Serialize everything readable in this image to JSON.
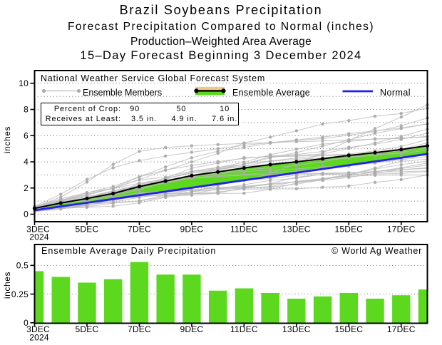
{
  "header": {
    "title": "Brazil Soybeans Precipitation",
    "subtitle1": "Forecast Precipitation Compared to Normal (inches)",
    "subtitle2": "Production–Weighted Area Average",
    "subtitle3": "15–Day Forecast Beginning 3 December 2024"
  },
  "colors": {
    "green": "#5cd81f",
    "blue": "#2222ee",
    "tan": "#f0c888",
    "member_line_gray": "#b9b9b9",
    "member_dot_gray": "#ababab",
    "average_black": "#000000",
    "grid_gray": "#595959"
  },
  "top_chart": {
    "source_label": "National Weather Service Global Forecast System",
    "legend": {
      "members_label": "Ensemble Members",
      "average_label": "Ensemble Average",
      "normal_label": "Normal"
    },
    "crop_box": {
      "row1_label": "Percent of Crop:",
      "row1_values": [
        "90",
        "50",
        "10"
      ],
      "row2_label": "Receives at Least:",
      "row2_values": [
        "3.5 in.",
        "4.9 in.",
        "7.6 in."
      ]
    },
    "ylabel": "inches"
  },
  "bottom_chart": {
    "title": "Ensemble Average Daily Precipitation",
    "credit": "© World Ag Weather",
    "ylabel": "inches"
  },
  "chart_data": [
    {
      "type": "line",
      "title": "Forecast cumulative precipitation compared to normal (inches)",
      "x_dates": [
        "3DEC",
        "4DEC",
        "5DEC",
        "6DEC",
        "7DEC",
        "8DEC",
        "9DEC",
        "10DEC",
        "11DEC",
        "12DEC",
        "13DEC",
        "14DEC",
        "15DEC",
        "16DEC",
        "17DEC",
        "18DEC"
      ],
      "x_tick_indices": [
        0,
        2,
        4,
        6,
        8,
        10,
        12,
        14
      ],
      "x_tick_labels": [
        "3DEC",
        "5DEC",
        "7DEC",
        "9DEC",
        "11DEC",
        "13DEC",
        "15DEC",
        "17DEC"
      ],
      "first_tick_year": "2024",
      "ylabel": "inches",
      "ylim": [
        -0.6,
        11.0
      ],
      "yticks": [
        0,
        2,
        4,
        6,
        8,
        10
      ],
      "ygrid_interval": 1,
      "grid": "dotted horizontal",
      "legend_position": "top-left inside",
      "series": [
        {
          "name": "Ensemble Average",
          "values": [
            0.45,
            0.85,
            1.2,
            1.58,
            2.11,
            2.53,
            2.95,
            3.23,
            3.53,
            3.79,
            4.0,
            4.23,
            4.49,
            4.7,
            4.94,
            5.23
          ]
        },
        {
          "name": "Normal",
          "values": [
            0.3,
            0.59,
            0.87,
            1.16,
            1.45,
            1.73,
            2.02,
            2.31,
            2.59,
            2.88,
            3.17,
            3.45,
            3.74,
            4.03,
            4.31,
            4.6
          ]
        }
      ],
      "members_name": "Ensemble Members",
      "members": [
        [
          0.2,
          0.4,
          0.68,
          1.15,
          1.56,
          1.57,
          1.58,
          1.59,
          1.6,
          1.9,
          2.38,
          2.68,
          2.89,
          2.98,
          2.99,
          3.0
        ],
        [
          0.24,
          0.44,
          0.53,
          0.61,
          0.87,
          1.28,
          1.55,
          1.71,
          1.92,
          1.93,
          1.94,
          2.06,
          2.15,
          2.43,
          2.65,
          3.0
        ],
        [
          0.34,
          0.53,
          0.86,
          1.26,
          1.4,
          1.41,
          1.45,
          1.62,
          2.01,
          2.34,
          2.83,
          3.04,
          3.06,
          3.07,
          3.11,
          3.25
        ],
        [
          0.29,
          0.42,
          0.58,
          0.84,
          1.02,
          1.45,
          1.55,
          1.92,
          2.25,
          2.58,
          2.75,
          3.06,
          3.16,
          3.26,
          3.4,
          3.5
        ],
        [
          0.35,
          0.44,
          0.68,
          1.08,
          1.36,
          1.53,
          1.71,
          1.92,
          2.08,
          2.26,
          2.47,
          2.58,
          2.81,
          3.12,
          3.4,
          3.55
        ],
        [
          0.24,
          0.47,
          0.74,
          0.89,
          1.01,
          1.35,
          1.7,
          2.22,
          2.6,
          2.72,
          2.97,
          3.12,
          3.13,
          3.26,
          3.49,
          3.75
        ],
        [
          0.33,
          0.48,
          0.74,
          0.94,
          1.28,
          1.56,
          1.83,
          2.04,
          2.12,
          2.32,
          2.48,
          2.69,
          2.94,
          3.23,
          3.55,
          3.9
        ],
        [
          0.23,
          0.41,
          0.66,
          1.17,
          1.56,
          1.75,
          1.86,
          2.0,
          2.01,
          2.07,
          2.29,
          2.63,
          3.0,
          3.45,
          3.78,
          4.05
        ],
        [
          0.24,
          0.61,
          0.9,
          1.25,
          1.65,
          1.74,
          1.8,
          1.87,
          1.98,
          2.11,
          2.51,
          2.72,
          3.02,
          3.53,
          4.04,
          4.2
        ],
        [
          0.4,
          0.8,
          1.08,
          1.46,
          1.99,
          2.38,
          2.76,
          2.97,
          3.03,
          3.19,
          3.28,
          3.54,
          3.7,
          3.91,
          4.16,
          4.4
        ],
        [
          0.47,
          0.83,
          1.01,
          1.39,
          1.87,
          2.45,
          2.85,
          3.08,
          3.26,
          3.36,
          3.46,
          3.63,
          3.67,
          4.05,
          4.35,
          4.6
        ],
        [
          0.38,
          0.86,
          1.24,
          1.76,
          2.26,
          2.75,
          3.15,
          3.4,
          3.67,
          3.75,
          3.98,
          4.16,
          4.3,
          4.55,
          4.63,
          4.9
        ],
        [
          0.37,
          0.8,
          1.19,
          1.62,
          2.3,
          2.57,
          2.95,
          3.13,
          3.41,
          3.53,
          3.73,
          4.0,
          4.37,
          4.49,
          4.73,
          5.05
        ],
        [
          0.48,
          0.95,
          1.22,
          1.54,
          2.18,
          2.65,
          3.26,
          3.46,
          3.68,
          4.04,
          4.19,
          4.3,
          4.52,
          4.63,
          4.85,
          5.2
        ],
        [
          0.35,
          0.91,
          1.33,
          1.78,
          2.17,
          2.48,
          2.93,
          3.39,
          3.84,
          4.07,
          4.29,
          4.47,
          4.52,
          4.66,
          4.95,
          5.45
        ],
        [
          0.46,
          1.01,
          1.36,
          1.68,
          2.18,
          2.56,
          2.96,
          3.48,
          3.81,
          4.39,
          4.43,
          4.51,
          4.6,
          4.84,
          5.17,
          5.7
        ],
        [
          0.53,
          1.08,
          1.52,
          1.96,
          2.37,
          2.7,
          3.15,
          3.56,
          3.97,
          4.54,
          4.97,
          5.35,
          5.55,
          5.76,
          5.77,
          5.95
        ],
        [
          0.53,
          1.06,
          1.63,
          2.12,
          2.85,
          3.38,
          3.72,
          4.02,
          4.26,
          4.44,
          4.56,
          4.79,
          5.11,
          5.34,
          5.71,
          6.2
        ],
        [
          0.4,
          0.9,
          1.17,
          1.52,
          2.04,
          2.76,
          3.51,
          3.9,
          4.32,
          4.4,
          4.49,
          4.6,
          5.02,
          5.44,
          5.94,
          6.5
        ],
        [
          0.4,
          1.03,
          1.52,
          1.99,
          2.62,
          2.83,
          3.29,
          3.58,
          3.81,
          4.29,
          4.71,
          5.2,
          5.68,
          6.18,
          6.54,
          6.9
        ],
        [
          0.46,
          0.99,
          1.45,
          1.99,
          2.85,
          3.61,
          4.31,
          4.81,
          5.1,
          5.42,
          5.63,
          5.78,
          6.03,
          6.31,
          6.76,
          7.35
        ],
        [
          0.58,
          1.17,
          1.65,
          1.97,
          2.65,
          3.35,
          3.99,
          4.65,
          5.44,
          5.88,
          6.37,
          6.89,
          7.15,
          7.48,
          7.69,
          8.1
        ],
        [
          0.55,
          1.3,
          2.45,
          3.8,
          4.8,
          5.1,
          5.22,
          5.32,
          5.4,
          5.46,
          5.54,
          5.6,
          5.67,
          5.73,
          5.81,
          5.9
        ],
        [
          0.59,
          1.53,
          2.66,
          3.55,
          4.09,
          4.44,
          4.73,
          5.01,
          5.25,
          5.47,
          5.67,
          5.89,
          6.15,
          6.36,
          6.59,
          6.9
        ],
        [
          0.29,
          0.57,
          0.82,
          1.12,
          1.45,
          1.74,
          2.02,
          2.28,
          2.57,
          3.11,
          3.85,
          4.68,
          5.61,
          6.54,
          7.42,
          8.35
        ],
        [
          0.45,
          0.87,
          1.25,
          1.65,
          2.14,
          2.46,
          2.74,
          2.88,
          2.99,
          3.04,
          3.08,
          3.12,
          3.17,
          3.21,
          3.25,
          3.3
        ]
      ],
      "band": {
        "description": "fill between Ensemble Average and Normal lines",
        "above_normal_color": "#5cd81f",
        "below_normal_color": "#f0c888"
      }
    },
    {
      "type": "bar",
      "title": "Ensemble Average Daily Precipitation",
      "categories": [
        "3DEC",
        "4DEC",
        "5DEC",
        "6DEC",
        "7DEC",
        "8DEC",
        "9DEC",
        "10DEC",
        "11DEC",
        "12DEC",
        "13DEC",
        "14DEC",
        "15DEC",
        "16DEC",
        "17DEC",
        "18DEC"
      ],
      "values": [
        0.45,
        0.4,
        0.35,
        0.38,
        0.53,
        0.42,
        0.42,
        0.28,
        0.3,
        0.26,
        0.21,
        0.23,
        0.26,
        0.21,
        0.24,
        0.29
      ],
      "x_tick_indices": [
        0,
        2,
        4,
        6,
        8,
        10,
        12,
        14
      ],
      "x_tick_labels": [
        "3DEC",
        "5DEC",
        "7DEC",
        "9DEC",
        "11DEC",
        "13DEC",
        "15DEC",
        "17DEC"
      ],
      "first_tick_year": "2024",
      "ylabel": "inches",
      "ylim": [
        0,
        0.68
      ],
      "yticks": [
        0,
        0.25,
        0.5
      ],
      "ytick_labels": [
        "0",
        "0.25",
        "0.5"
      ],
      "grid": "dotted horizontal"
    }
  ]
}
